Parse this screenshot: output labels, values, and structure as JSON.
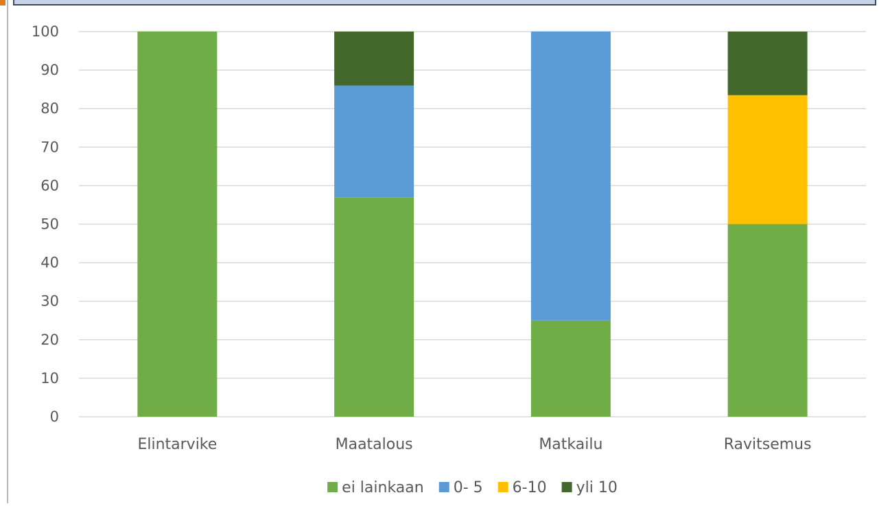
{
  "chart_data": {
    "type": "bar",
    "stacked": true,
    "categories": [
      "Elintarvike",
      "Maatalous",
      "Matkailu",
      "Ravitsemus"
    ],
    "series": [
      {
        "name": "ei lainkaan",
        "color": "#70ad47",
        "values": [
          100,
          57,
          25,
          50
        ]
      },
      {
        "name": "0- 5",
        "color": "#5b9bd5",
        "values": [
          0,
          29,
          75,
          0
        ]
      },
      {
        "name": "6-10",
        "color": "#ffc000",
        "values": [
          0,
          0,
          0,
          33.5
        ]
      },
      {
        "name": "yli 10",
        "color": "#43682b",
        "values": [
          0,
          14,
          0,
          16.5
        ]
      }
    ],
    "y_ticks": [
      "0",
      "10",
      "20",
      "30",
      "40",
      "50",
      "60",
      "70",
      "80",
      "90",
      "100"
    ],
    "ylim": [
      0,
      100
    ],
    "grid": true,
    "legend_position": "bottom",
    "title": "",
    "xlabel": "",
    "ylabel": ""
  },
  "colors": {
    "window_frame_fill": "#c9d3e6",
    "window_frame_border": "#3b4a6b",
    "left_rule": "#9aa0a6",
    "gridline": "#d9d9d9",
    "axis_text": "#595959"
  }
}
